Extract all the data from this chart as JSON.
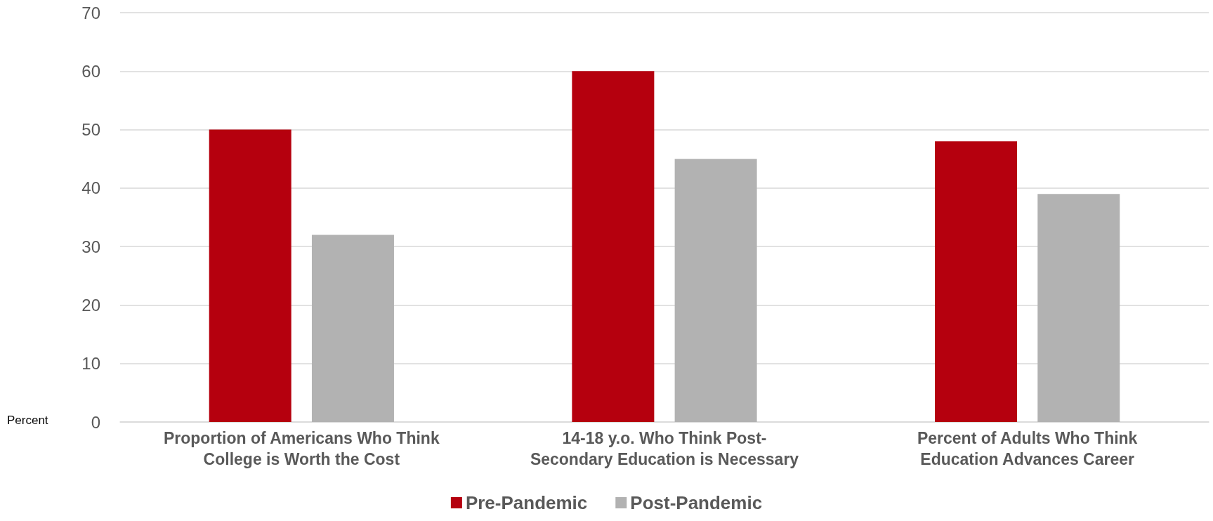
{
  "chart_data": {
    "type": "bar",
    "ylabel": "Percent",
    "categories": [
      "Proportion of Americans Who Think\nCollege is Worth the Cost",
      "14-18 y.o. Who Think Post-\nSecondary Education is Necessary",
      "Percent of Adults Who Think\nEducation Advances Career"
    ],
    "series": [
      {
        "name": "Pre-Pandemic",
        "color": "#b5000e",
        "values": [
          50,
          60,
          48
        ]
      },
      {
        "name": "Post-Pandemic",
        "color": "#b2b2b2",
        "values": [
          32,
          45,
          39
        ]
      }
    ],
    "ylim": [
      0,
      70
    ],
    "yticks": [
      0,
      10,
      20,
      30,
      40,
      50,
      60,
      70
    ],
    "grid": "y",
    "legend": "bottom"
  }
}
